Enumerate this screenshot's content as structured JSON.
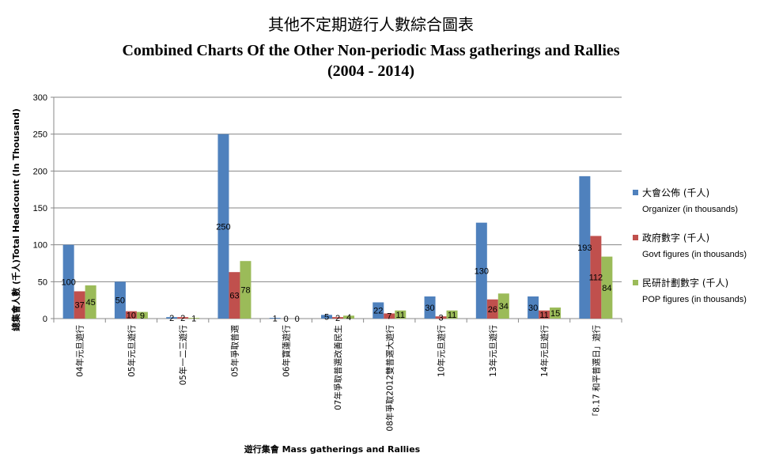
{
  "chart_data": {
    "type": "bar",
    "title_zh": "其他不定期遊行人數綜合圖表",
    "title_en": "Combined Charts Of the Other Non-periodic Mass gatherings and Rallies",
    "subtitle": "(2004 - 2014)",
    "xlabel": "遊行集會 Mass gatherings and Rallies",
    "ylabel": "總集會人數 (千人)Total Headcount (In Thousand)",
    "ylim": [
      0,
      300
    ],
    "yticks": [
      "0",
      "50",
      "100",
      "150",
      "200",
      "250",
      "300"
    ],
    "grid": true,
    "legend_position": "right",
    "categories": [
      "04年元旦遊行",
      "05年元旦遊行",
      "05年一二三遊行",
      "05年爭取普選",
      "06年寶蓮遊行",
      "07年爭取普選改善民生",
      "08年爭取2012雙普選大遊行",
      "10年元旦遊行",
      "13年元旦遊行",
      "14年元旦遊行",
      "「8.17 和平普選日」遊行"
    ],
    "series": [
      {
        "name": "大會公佈 (千人)",
        "name_en": "Organizer (in thousands)",
        "color": "#4F81BD",
        "values": [
          100,
          50,
          2,
          250,
          1,
          5,
          22,
          30,
          130,
          30,
          193
        ],
        "labels": [
          "100",
          "50",
          "2",
          "250",
          "1",
          "5",
          "22",
          "30",
          "130",
          "30",
          "193"
        ]
      },
      {
        "name": "政府數字 (千人)",
        "name_en": "Govt figures (in thousands)",
        "color": "#C0504D",
        "values": [
          37,
          10,
          2,
          63,
          0,
          2,
          7,
          3,
          26,
          11,
          112
        ],
        "labels": [
          "37",
          "10",
          "2",
          "63",
          "0",
          "2",
          "7",
          "3",
          "26",
          "11",
          "112"
        ]
      },
      {
        "name": "民研計劃數字 (千人)",
        "name_en": "POP figures (in thousands)",
        "color": "#9BBB59",
        "values": [
          45,
          9,
          1,
          78,
          0,
          4,
          11,
          11,
          34,
          15,
          84
        ],
        "labels": [
          "45",
          "9",
          "1",
          "78",
          "0",
          "4",
          "11",
          "11",
          "34",
          "15",
          "84"
        ]
      }
    ]
  }
}
